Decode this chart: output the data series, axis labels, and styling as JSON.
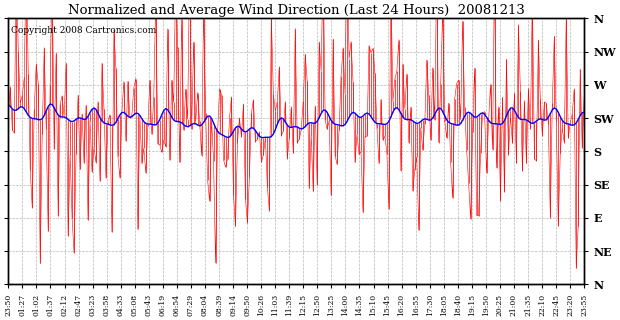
{
  "title": "Normalized and Average Wind Direction (Last 24 Hours)  20081213",
  "copyright": "Copyright 2008 Cartronics.com",
  "background_color": "#ffffff",
  "plot_bg_color": "#ffffff",
  "grid_color": "#999999",
  "ytick_labels_right": [
    "N",
    "NW",
    "W",
    "SW",
    "S",
    "SE",
    "E",
    "NE",
    "N"
  ],
  "ytick_values": [
    360,
    315,
    270,
    225,
    180,
    135,
    90,
    45,
    0
  ],
  "ylim": [
    0,
    360
  ],
  "xtick_labels": [
    "23:50",
    "01:27",
    "01:02",
    "01:37",
    "02:12",
    "02:47",
    "03:23",
    "03:58",
    "04:33",
    "05:08",
    "05:43",
    "06:19",
    "06:54",
    "07:29",
    "08:04",
    "08:39",
    "09:14",
    "09:50",
    "10:26",
    "11:03",
    "11:39",
    "12:15",
    "12:50",
    "13:25",
    "14:00",
    "14:35",
    "15:10",
    "15:45",
    "16:20",
    "16:55",
    "17:30",
    "18:05",
    "18:40",
    "19:15",
    "19:50",
    "20:25",
    "21:00",
    "21:35",
    "22:10",
    "22:45",
    "23:20",
    "23:55"
  ],
  "red_color": "#ff0000",
  "blue_color": "#0000ff",
  "red_linewidth": 0.5,
  "blue_linewidth": 1.0,
  "n_points": 290,
  "random_seed": 12345
}
